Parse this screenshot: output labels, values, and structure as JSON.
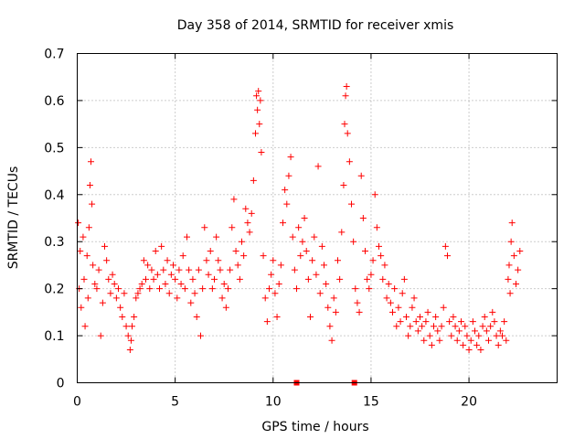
{
  "chart_data": {
    "type": "scatter",
    "title": "Day 358 of 2014, SRMTID for receiver xmis",
    "xlabel": "GPS time / hours",
    "ylabel": "SRMTID / TECUs",
    "xlim": [
      0,
      24.5
    ],
    "ylim": [
      0,
      0.7
    ],
    "xticks": [
      0,
      5,
      10,
      15,
      20
    ],
    "yticks": [
      0,
      0.1,
      0.2,
      0.3,
      0.4,
      0.5,
      0.6,
      0.7
    ],
    "ytick_labels": [
      "0",
      "0.1",
      "0.2",
      "0.3",
      "0.4",
      "0.5",
      "0.6",
      "0.7"
    ],
    "grid": true,
    "color": "#ff0000",
    "marker": "plus",
    "series": [
      {
        "name": "SRMTID",
        "points": [
          [
            0.05,
            0.34
          ],
          [
            0.1,
            0.2
          ],
          [
            0.15,
            0.28
          ],
          [
            0.2,
            0.16
          ],
          [
            0.3,
            0.31
          ],
          [
            0.35,
            0.22
          ],
          [
            0.4,
            0.12
          ],
          [
            0.5,
            0.27
          ],
          [
            0.55,
            0.18
          ],
          [
            0.6,
            0.33
          ],
          [
            0.65,
            0.42
          ],
          [
            0.7,
            0.47
          ],
          [
            0.75,
            0.38
          ],
          [
            0.8,
            0.25
          ],
          [
            0.9,
            0.21
          ],
          [
            1.0,
            0.2
          ],
          [
            1.1,
            0.24
          ],
          [
            1.2,
            0.1
          ],
          [
            1.3,
            0.17
          ],
          [
            1.4,
            0.29
          ],
          [
            1.5,
            0.26
          ],
          [
            1.6,
            0.22
          ],
          [
            1.7,
            0.19
          ],
          [
            1.8,
            0.23
          ],
          [
            1.9,
            0.21
          ],
          [
            2.0,
            0.18
          ],
          [
            2.1,
            0.2
          ],
          [
            2.2,
            0.16
          ],
          [
            2.3,
            0.14
          ],
          [
            2.4,
            0.19
          ],
          [
            2.5,
            0.12
          ],
          [
            2.6,
            0.1
          ],
          [
            2.7,
            0.07
          ],
          [
            2.75,
            0.09
          ],
          [
            2.8,
            0.12
          ],
          [
            2.9,
            0.14
          ],
          [
            3.0,
            0.18
          ],
          [
            3.1,
            0.19
          ],
          [
            3.2,
            0.2
          ],
          [
            3.3,
            0.21
          ],
          [
            3.4,
            0.26
          ],
          [
            3.5,
            0.22
          ],
          [
            3.6,
            0.25
          ],
          [
            3.7,
            0.2
          ],
          [
            3.8,
            0.24
          ],
          [
            3.9,
            0.22
          ],
          [
            4.0,
            0.28
          ],
          [
            4.1,
            0.23
          ],
          [
            4.2,
            0.2
          ],
          [
            4.3,
            0.29
          ],
          [
            4.4,
            0.24
          ],
          [
            4.5,
            0.21
          ],
          [
            4.6,
            0.26
          ],
          [
            4.7,
            0.19
          ],
          [
            4.8,
            0.23
          ],
          [
            4.9,
            0.25
          ],
          [
            5.0,
            0.22
          ],
          [
            5.1,
            0.18
          ],
          [
            5.2,
            0.24
          ],
          [
            5.3,
            0.21
          ],
          [
            5.4,
            0.27
          ],
          [
            5.5,
            0.2
          ],
          [
            5.6,
            0.31
          ],
          [
            5.7,
            0.24
          ],
          [
            5.8,
            0.17
          ],
          [
            5.9,
            0.22
          ],
          [
            6.0,
            0.19
          ],
          [
            6.1,
            0.14
          ],
          [
            6.2,
            0.24
          ],
          [
            6.3,
            0.1
          ],
          [
            6.4,
            0.2
          ],
          [
            6.5,
            0.33
          ],
          [
            6.6,
            0.26
          ],
          [
            6.7,
            0.23
          ],
          [
            6.8,
            0.28
          ],
          [
            6.9,
            0.2
          ],
          [
            7.0,
            0.22
          ],
          [
            7.1,
            0.31
          ],
          [
            7.2,
            0.26
          ],
          [
            7.3,
            0.24
          ],
          [
            7.4,
            0.18
          ],
          [
            7.5,
            0.21
          ],
          [
            7.6,
            0.16
          ],
          [
            7.7,
            0.2
          ],
          [
            7.8,
            0.24
          ],
          [
            7.9,
            0.33
          ],
          [
            8.0,
            0.39
          ],
          [
            8.1,
            0.28
          ],
          [
            8.2,
            0.25
          ],
          [
            8.3,
            0.22
          ],
          [
            8.4,
            0.3
          ],
          [
            8.5,
            0.27
          ],
          [
            8.6,
            0.37
          ],
          [
            8.7,
            0.34
          ],
          [
            8.8,
            0.32
          ],
          [
            8.9,
            0.36
          ],
          [
            9.0,
            0.43
          ],
          [
            9.1,
            0.53
          ],
          [
            9.15,
            0.61
          ],
          [
            9.2,
            0.58
          ],
          [
            9.25,
            0.62
          ],
          [
            9.3,
            0.55
          ],
          [
            9.35,
            0.6
          ],
          [
            9.4,
            0.49
          ],
          [
            9.5,
            0.27
          ],
          [
            9.6,
            0.18
          ],
          [
            9.7,
            0.13
          ],
          [
            9.8,
            0.2
          ],
          [
            9.9,
            0.23
          ],
          [
            10.0,
            0.26
          ],
          [
            10.1,
            0.19
          ],
          [
            10.2,
            0.14
          ],
          [
            10.3,
            0.21
          ],
          [
            10.4,
            0.25
          ],
          [
            10.5,
            0.34
          ],
          [
            10.6,
            0.41
          ],
          [
            10.7,
            0.38
          ],
          [
            10.8,
            0.44
          ],
          [
            10.9,
            0.48
          ],
          [
            11.0,
            0.31
          ],
          [
            11.1,
            0.24
          ],
          [
            11.2,
            0.2
          ],
          [
            11.3,
            0.33
          ],
          [
            11.4,
            0.27
          ],
          [
            11.5,
            0.3
          ],
          [
            11.6,
            0.35
          ],
          [
            11.7,
            0.28
          ],
          [
            11.8,
            0.22
          ],
          [
            11.9,
            0.14
          ],
          [
            12.0,
            0.26
          ],
          [
            12.1,
            0.31
          ],
          [
            12.2,
            0.23
          ],
          [
            12.3,
            0.46
          ],
          [
            12.4,
            0.19
          ],
          [
            12.5,
            0.29
          ],
          [
            12.6,
            0.25
          ],
          [
            12.7,
            0.21
          ],
          [
            12.8,
            0.16
          ],
          [
            12.9,
            0.12
          ],
          [
            13.0,
            0.09
          ],
          [
            13.1,
            0.18
          ],
          [
            13.2,
            0.15
          ],
          [
            13.3,
            0.26
          ],
          [
            13.4,
            0.22
          ],
          [
            13.5,
            0.32
          ],
          [
            13.6,
            0.42
          ],
          [
            13.65,
            0.55
          ],
          [
            13.7,
            0.61
          ],
          [
            13.75,
            0.63
          ],
          [
            13.8,
            0.53
          ],
          [
            13.9,
            0.47
          ],
          [
            14.0,
            0.38
          ],
          [
            14.1,
            0.3
          ],
          [
            14.2,
            0.2
          ],
          [
            14.3,
            0.17
          ],
          [
            14.4,
            0.15
          ],
          [
            14.5,
            0.44
          ],
          [
            14.6,
            0.35
          ],
          [
            14.7,
            0.28
          ],
          [
            14.8,
            0.22
          ],
          [
            14.9,
            0.2
          ],
          [
            15.0,
            0.23
          ],
          [
            15.1,
            0.26
          ],
          [
            15.2,
            0.4
          ],
          [
            15.3,
            0.33
          ],
          [
            15.4,
            0.29
          ],
          [
            15.5,
            0.27
          ],
          [
            15.6,
            0.22
          ],
          [
            15.7,
            0.25
          ],
          [
            15.8,
            0.18
          ],
          [
            15.9,
            0.21
          ],
          [
            16.0,
            0.17
          ],
          [
            16.1,
            0.15
          ],
          [
            16.2,
            0.2
          ],
          [
            16.3,
            0.12
          ],
          [
            16.4,
            0.16
          ],
          [
            16.5,
            0.13
          ],
          [
            16.6,
            0.19
          ],
          [
            16.7,
            0.22
          ],
          [
            16.8,
            0.14
          ],
          [
            16.9,
            0.1
          ],
          [
            17.0,
            0.12
          ],
          [
            17.1,
            0.16
          ],
          [
            17.2,
            0.18
          ],
          [
            17.3,
            0.13
          ],
          [
            17.4,
            0.11
          ],
          [
            17.5,
            0.14
          ],
          [
            17.6,
            0.12
          ],
          [
            17.7,
            0.09
          ],
          [
            17.8,
            0.13
          ],
          [
            17.9,
            0.15
          ],
          [
            18.0,
            0.1
          ],
          [
            18.1,
            0.08
          ],
          [
            18.2,
            0.12
          ],
          [
            18.3,
            0.14
          ],
          [
            18.4,
            0.11
          ],
          [
            18.5,
            0.09
          ],
          [
            18.6,
            0.12
          ],
          [
            18.7,
            0.16
          ],
          [
            18.8,
            0.29
          ],
          [
            18.9,
            0.27
          ],
          [
            19.0,
            0.13
          ],
          [
            19.1,
            0.1
          ],
          [
            19.2,
            0.14
          ],
          [
            19.3,
            0.12
          ],
          [
            19.4,
            0.09
          ],
          [
            19.5,
            0.11
          ],
          [
            19.6,
            0.13
          ],
          [
            19.7,
            0.08
          ],
          [
            19.8,
            0.12
          ],
          [
            19.9,
            0.1
          ],
          [
            20.0,
            0.07
          ],
          [
            20.1,
            0.09
          ],
          [
            20.2,
            0.13
          ],
          [
            20.3,
            0.11
          ],
          [
            20.4,
            0.08
          ],
          [
            20.5,
            0.1
          ],
          [
            20.6,
            0.07
          ],
          [
            20.7,
            0.12
          ],
          [
            20.8,
            0.14
          ],
          [
            20.9,
            0.11
          ],
          [
            21.0,
            0.09
          ],
          [
            21.1,
            0.12
          ],
          [
            21.2,
            0.15
          ],
          [
            21.3,
            0.13
          ],
          [
            21.4,
            0.1
          ],
          [
            21.5,
            0.08
          ],
          [
            21.6,
            0.11
          ],
          [
            21.7,
            0.1
          ],
          [
            21.8,
            0.13
          ],
          [
            21.9,
            0.09
          ],
          [
            22.0,
            0.22
          ],
          [
            22.05,
            0.25
          ],
          [
            22.1,
            0.19
          ],
          [
            22.15,
            0.3
          ],
          [
            22.2,
            0.34
          ],
          [
            22.3,
            0.27
          ],
          [
            22.4,
            0.21
          ],
          [
            22.5,
            0.24
          ],
          [
            22.6,
            0.28
          ]
        ]
      },
      {
        "name": "zero markers",
        "points": [
          [
            11.2,
            0
          ],
          [
            14.15,
            0
          ]
        ]
      }
    ]
  }
}
